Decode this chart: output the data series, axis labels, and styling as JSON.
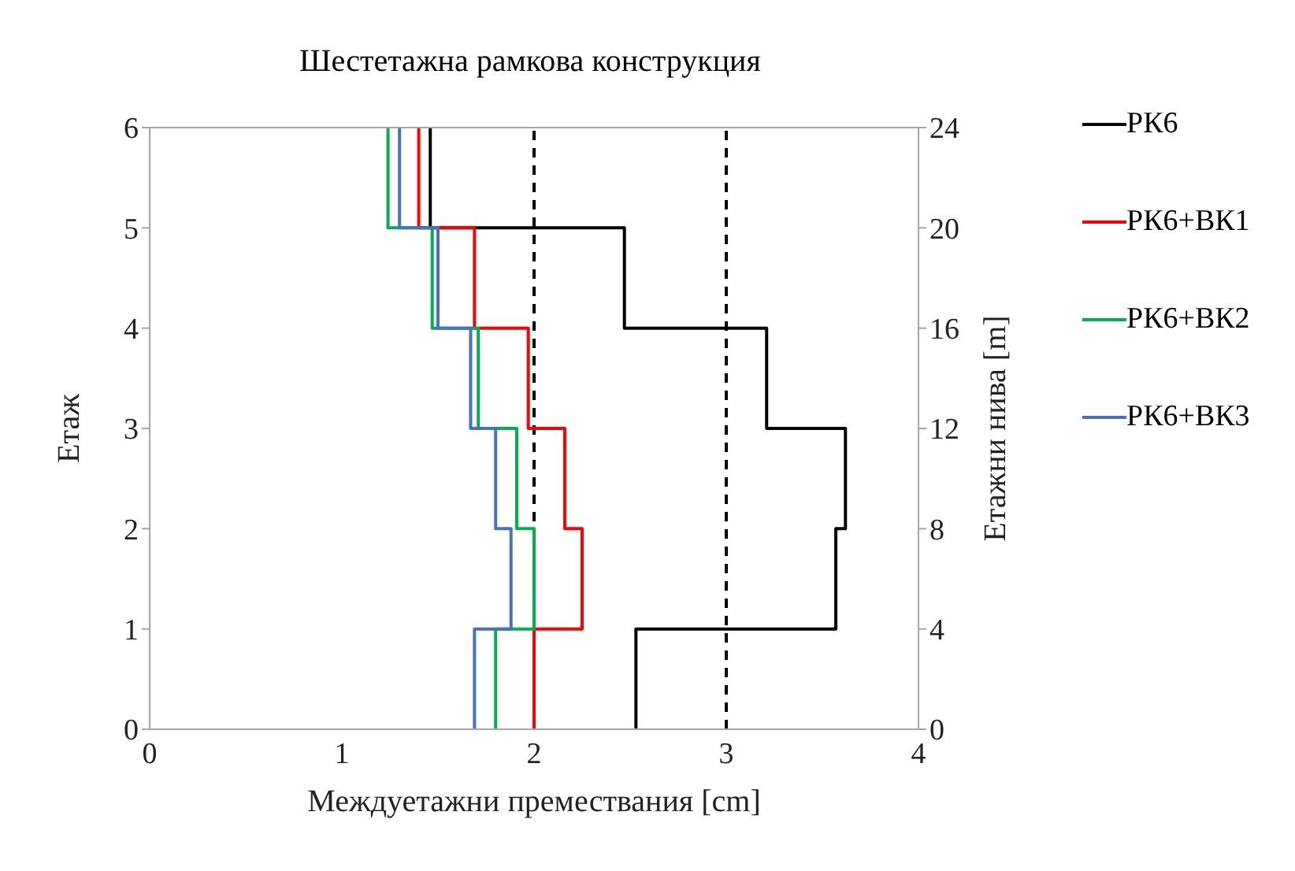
{
  "chart_data": {
    "type": "line",
    "title": "Шестетажна рамкова конструкция",
    "xlabel": "Междуетажни премествания [cm]",
    "ylabel": "Етаж",
    "y2label": "Етажни нива [m]",
    "xlim": [
      0,
      4
    ],
    "xticks": [
      0,
      1,
      2,
      3,
      4
    ],
    "ylim": [
      0,
      6
    ],
    "yticks": [
      0,
      1,
      2,
      3,
      4,
      5,
      6
    ],
    "y2lim": [
      0,
      24
    ],
    "y2ticks": [
      0,
      4,
      8,
      12,
      16,
      20,
      24
    ],
    "grid": false,
    "legend": "right",
    "marker": "none",
    "line_style": "solid",
    "ref_lines": [
      {
        "axis": "x",
        "value": 2,
        "color": "#000000",
        "line_style": "dashed"
      },
      {
        "axis": "x",
        "value": 3,
        "color": "#000000",
        "line_style": "dashed"
      }
    ],
    "series": [
      {
        "name": "РК6",
        "color": "#000000",
        "x": [
          2.53,
          2.53,
          3.57,
          3.57,
          3.62,
          3.62,
          3.21,
          3.21,
          2.47,
          2.47,
          1.46,
          1.46
        ],
        "values": [
          0,
          1,
          1,
          2,
          2,
          3,
          3,
          4,
          4,
          5,
          5,
          6
        ]
      },
      {
        "name": "РК6+ВК1",
        "color": "#ff0000",
        "x": [
          2.0,
          2.0,
          2.25,
          2.25,
          2.16,
          2.16,
          1.97,
          1.97,
          1.69,
          1.69,
          1.4,
          1.4
        ],
        "values": [
          0,
          1,
          1,
          2,
          2,
          3,
          3,
          4,
          4,
          5,
          5,
          6
        ]
      },
      {
        "name": "РК6+ВК2",
        "color": "#00b050",
        "x": [
          1.8,
          1.8,
          2.0,
          2.0,
          1.91,
          1.91,
          1.71,
          1.71,
          1.47,
          1.47,
          1.24,
          1.24
        ],
        "values": [
          0,
          1,
          1,
          2,
          2,
          3,
          3,
          4,
          4,
          5,
          5,
          6
        ]
      },
      {
        "name": "РК6+ВК3",
        "color": "#4472c4",
        "x": [
          1.69,
          1.69,
          1.88,
          1.88,
          1.8,
          1.8,
          1.67,
          1.67,
          1.5,
          1.5,
          1.3,
          1.3
        ],
        "values": [
          0,
          1,
          1,
          2,
          2,
          3,
          3,
          4,
          4,
          5,
          5,
          6
        ]
      }
    ]
  }
}
